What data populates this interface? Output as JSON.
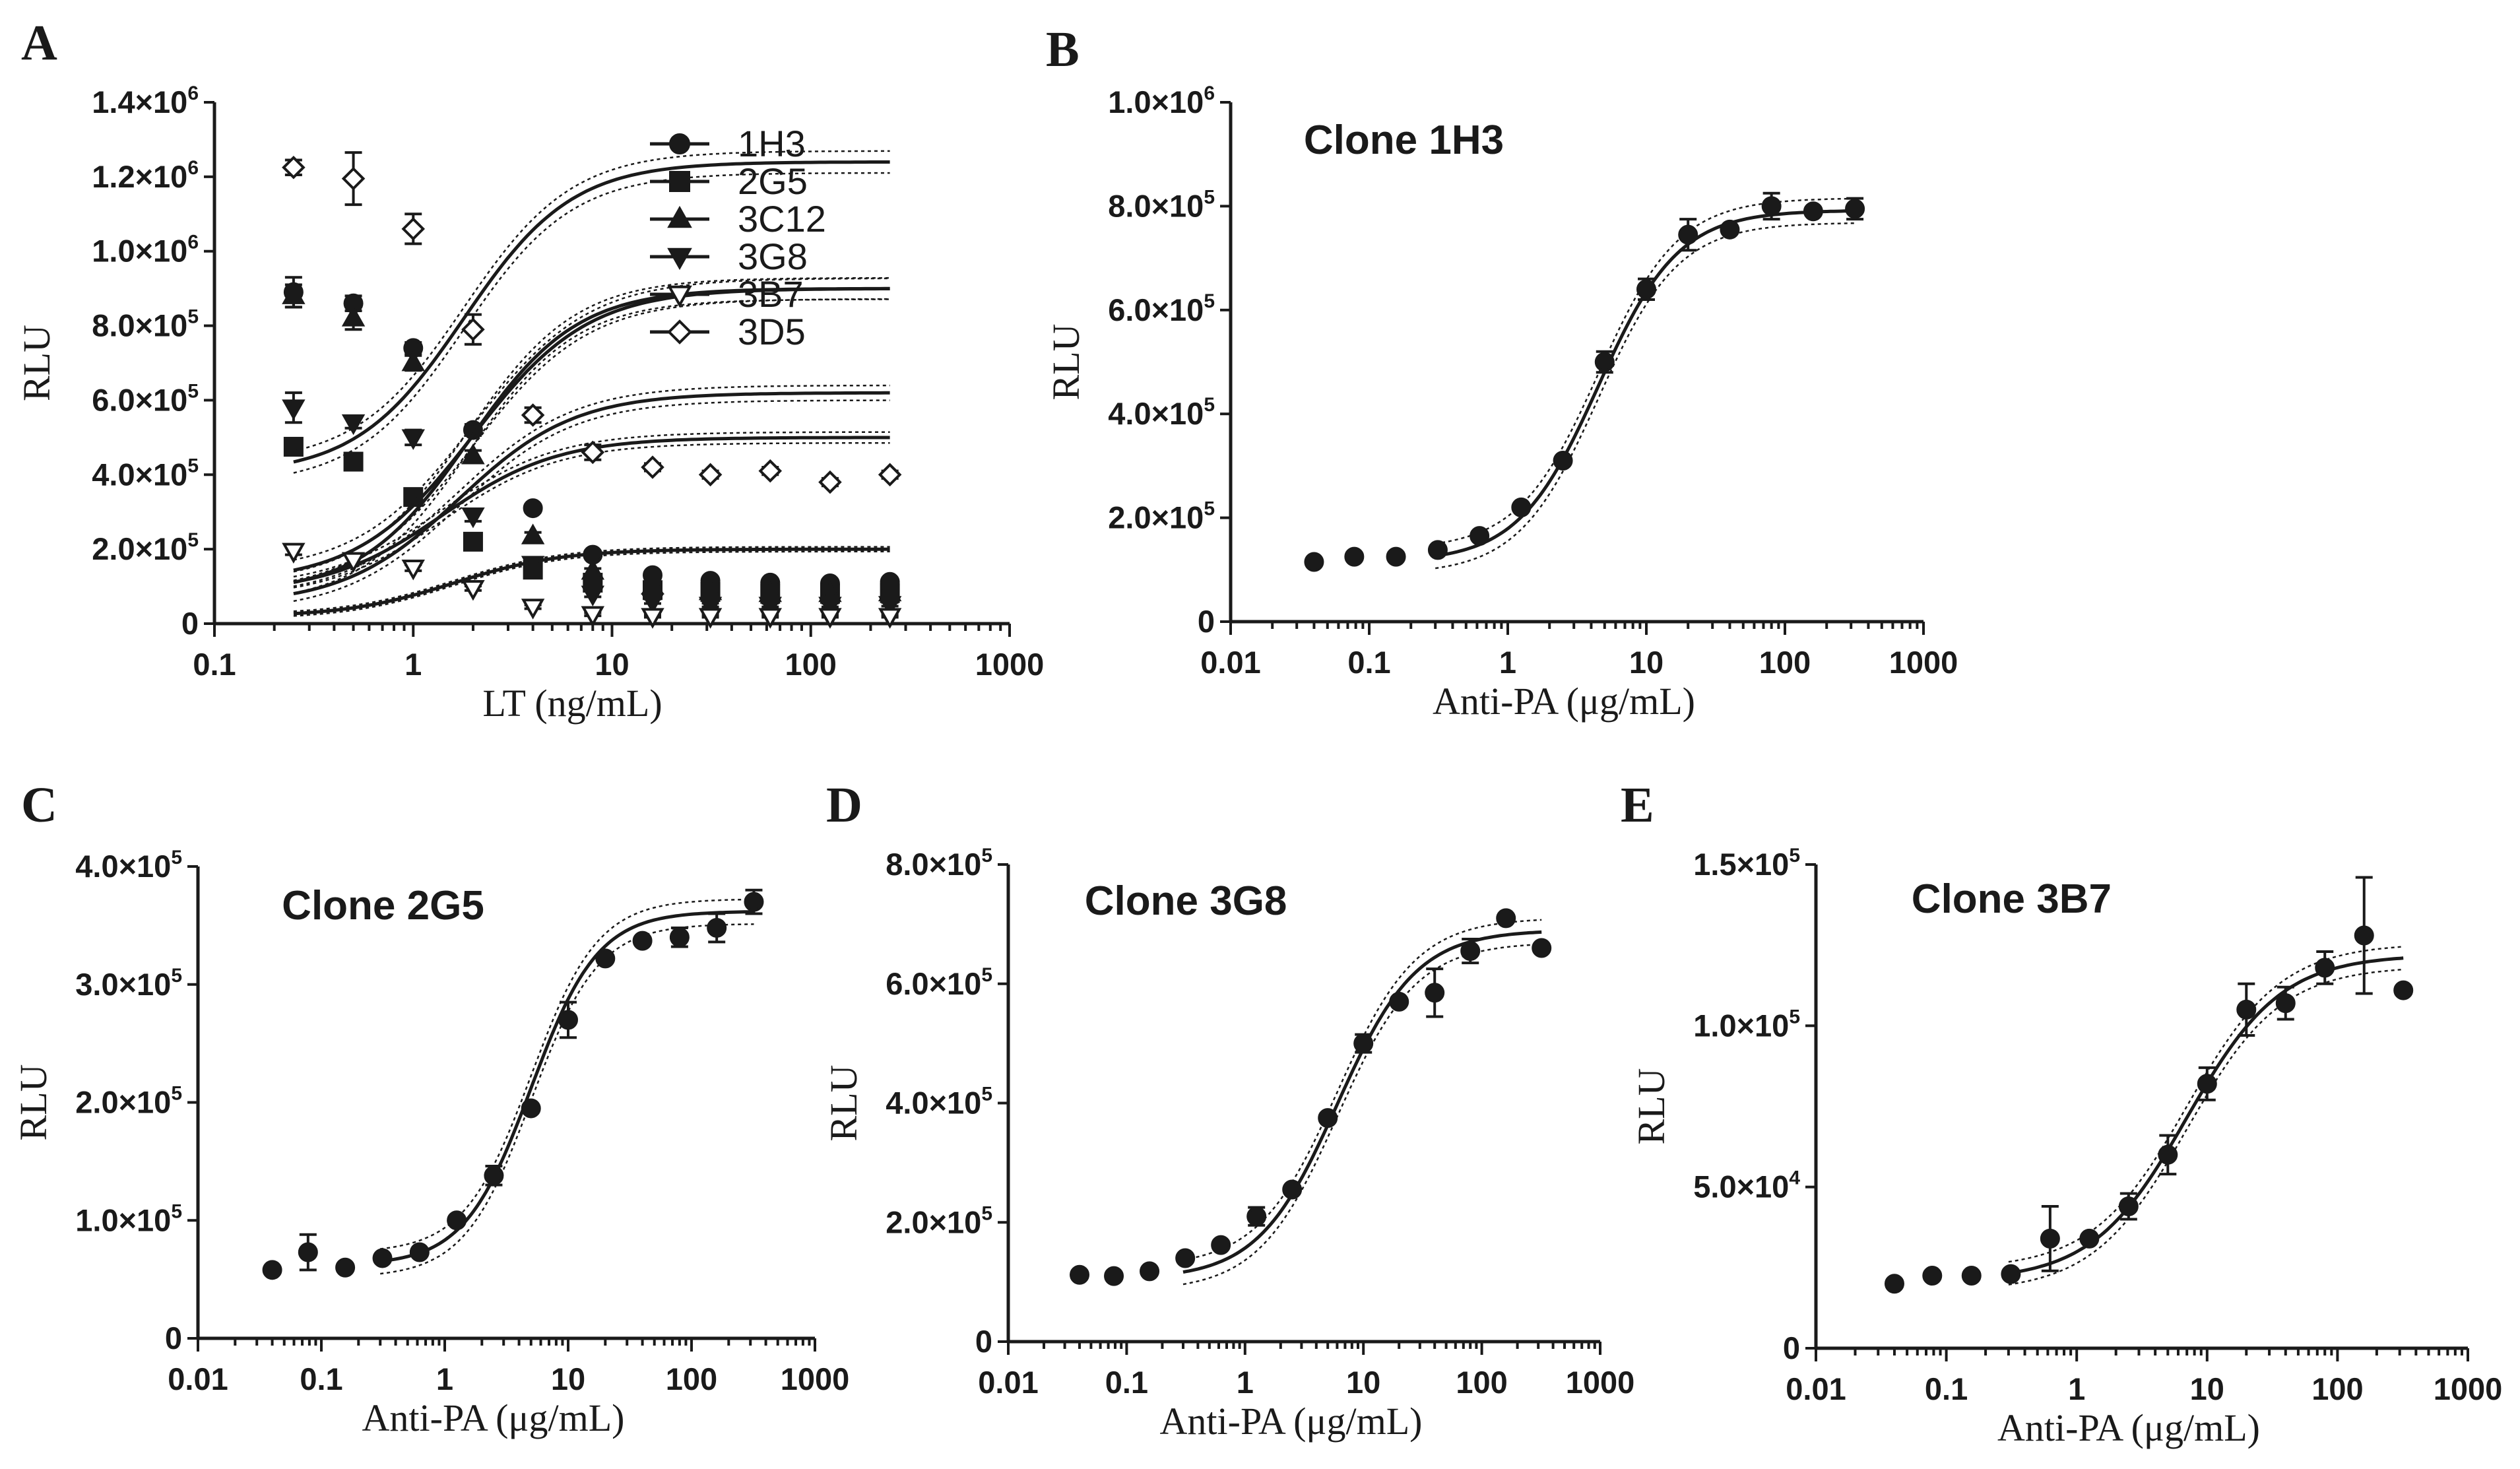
{
  "colors": {
    "ink": "#1a1a1a",
    "background": "#ffffff"
  },
  "chart_data": [
    {
      "panel": "A",
      "type": "scatter",
      "title": "",
      "xlabel": "LT (ng/mL)",
      "ylabel": "RLU",
      "xscale": "log",
      "xlim": [
        0.1,
        1000
      ],
      "ylim": [
        0,
        1400000
      ],
      "xticks": [
        0.1,
        1,
        10,
        100,
        1000
      ],
      "xtick_labels": [
        "0.1",
        "1",
        "10",
        "100",
        "1000"
      ],
      "yticks": [
        0,
        200000,
        400000,
        600000,
        800000,
        1000000,
        1200000,
        1400000
      ],
      "ytick_labels": [
        {
          "m": "0",
          "e": ""
        },
        {
          "m": "2.0×10",
          "e": "5"
        },
        {
          "m": "4.0×10",
          "e": "5"
        },
        {
          "m": "6.0×10",
          "e": "5"
        },
        {
          "m": "8.0×10",
          "e": "5"
        },
        {
          "m": "1.0×10",
          "e": "6"
        },
        {
          "m": "1.2×10",
          "e": "6"
        },
        {
          "m": "1.4×10",
          "e": "6"
        }
      ],
      "legend_position": "top-right",
      "series": [
        {
          "name": "1H3",
          "marker": "circle",
          "x": [
            0.25,
            0.5,
            1,
            2,
            4,
            8,
            16,
            31.25,
            62.5,
            125,
            250
          ],
          "y": [
            890000,
            860000,
            740000,
            520000,
            310000,
            185000,
            130000,
            115000,
            110000,
            108000,
            112000
          ],
          "err": [
            40000,
            20000,
            15000,
            15000,
            10000,
            8000,
            6000,
            5000,
            5000,
            5000,
            5000
          ],
          "fit": {
            "bottom": 110000,
            "top": 900000,
            "ec50": 2.0,
            "hill": 1.5
          }
        },
        {
          "name": "2G5",
          "marker": "square",
          "x": [
            0.25,
            0.5,
            1,
            2,
            4,
            8,
            16,
            31.25,
            62.5,
            125,
            250
          ],
          "y": [
            475000,
            435000,
            340000,
            220000,
            145000,
            110000,
            90000,
            85000,
            80000,
            80000,
            82000
          ],
          "err": [
            10000,
            10000,
            10000,
            10000,
            8000,
            6000,
            5000,
            5000,
            5000,
            5000,
            5000
          ],
          "fit": {
            "bottom": 82000,
            "top": 500000,
            "ec50": 1.4,
            "hill": 1.5
          }
        },
        {
          "name": "3C12",
          "marker": "triangle-up",
          "x": [
            0.25,
            0.5,
            1,
            2,
            4,
            8,
            16,
            31.25,
            62.5,
            125,
            250
          ],
          "y": [
            880000,
            820000,
            700000,
            450000,
            235000,
            140000,
            100000,
            85000,
            80000,
            80000,
            82000
          ],
          "err": [
            30000,
            30000,
            20000,
            15000,
            10000,
            8000,
            6000,
            5000,
            5000,
            5000,
            5000
          ],
          "fit": {
            "bottom": 80000,
            "top": 900000,
            "ec50": 1.9,
            "hill": 1.6
          }
        },
        {
          "name": "3G8",
          "marker": "triangle-down",
          "x": [
            0.25,
            0.5,
            1,
            2,
            4,
            8,
            16,
            31.25,
            62.5,
            125,
            250
          ],
          "y": [
            580000,
            540000,
            500000,
            290000,
            160000,
            80000,
            60000,
            50000,
            50000,
            50000,
            52000
          ],
          "err": [
            40000,
            15000,
            20000,
            15000,
            10000,
            8000,
            6000,
            5000,
            5000,
            5000,
            5000
          ],
          "fit": {
            "bottom": 50000,
            "top": 620000,
            "ec50": 1.7,
            "hill": 1.5
          }
        },
        {
          "name": "3B7",
          "marker": "triangle-down-open",
          "x": [
            0.25,
            0.5,
            1,
            2,
            4,
            8,
            16,
            31.25,
            62.5,
            125,
            250
          ],
          "y": [
            195000,
            170000,
            150000,
            95000,
            45000,
            25000,
            20000,
            20000,
            20000,
            20000,
            20000
          ],
          "err": [
            10000,
            10000,
            8000,
            6000,
            5000,
            4000,
            3000,
            3000,
            3000,
            3000,
            3000
          ],
          "fit": {
            "bottom": 18000,
            "top": 200000,
            "ec50": 1.6,
            "hill": 1.6
          }
        },
        {
          "name": "3D5",
          "marker": "diamond-open",
          "x": [
            0.25,
            0.5,
            1,
            2,
            4,
            8,
            16,
            31.25,
            62.5,
            125,
            250
          ],
          "y": [
            1225000,
            1195000,
            1060000,
            790000,
            560000,
            460000,
            420000,
            400000,
            410000,
            380000,
            400000
          ],
          "err": [
            20000,
            70000,
            40000,
            40000,
            20000,
            20000,
            10000,
            10000,
            10000,
            10000,
            10000
          ],
          "fit": {
            "bottom": 400000,
            "top": 1240000,
            "ec50": 1.8,
            "hill": 1.6
          }
        }
      ]
    },
    {
      "panel": "B",
      "type": "scatter",
      "title": "Clone 1H3",
      "xlabel": "Anti-PA (μg/mL)",
      "ylabel": "RLU",
      "xscale": "log",
      "xlim": [
        0.01,
        1000
      ],
      "ylim": [
        0,
        1000000
      ],
      "xticks": [
        0.01,
        0.1,
        1,
        10,
        100,
        1000
      ],
      "xtick_labels": [
        "0.01",
        "0.1",
        "1",
        "10",
        "100",
        "1000"
      ],
      "yticks": [
        0,
        200000,
        400000,
        600000,
        800000,
        1000000
      ],
      "ytick_labels": [
        {
          "m": "0",
          "e": ""
        },
        {
          "m": "2.0×10",
          "e": "5"
        },
        {
          "m": "4.0×10",
          "e": "5"
        },
        {
          "m": "6.0×10",
          "e": "5"
        },
        {
          "m": "8.0×10",
          "e": "5"
        },
        {
          "m": "1.0×10",
          "e": "6"
        }
      ],
      "series": [
        {
          "name": "Clone 1H3",
          "marker": "circle",
          "x": [
            0.04,
            0.078,
            0.156,
            0.3125,
            0.625,
            1.25,
            2.5,
            5,
            10,
            20,
            40,
            80,
            160,
            320
          ],
          "y": [
            115000,
            125000,
            125000,
            138000,
            165000,
            220000,
            310000,
            500000,
            640000,
            745000,
            755000,
            800000,
            790000,
            795000
          ],
          "err": [
            0,
            0,
            0,
            0,
            0,
            0,
            0,
            20000,
            20000,
            30000,
            0,
            25000,
            0,
            20000
          ],
          "fit": {
            "bottom": 115000,
            "top": 792000,
            "ec50": 4.5,
            "hill": 1.5
          }
        }
      ]
    },
    {
      "panel": "C",
      "type": "scatter",
      "title": "Clone 2G5",
      "xlabel": "Anti-PA (μg/mL)",
      "ylabel": "RLU",
      "xscale": "log",
      "xlim": [
        0.01,
        1000
      ],
      "ylim": [
        0,
        400000
      ],
      "xticks": [
        0.01,
        0.1,
        1,
        10,
        100,
        1000
      ],
      "xtick_labels": [
        "0.01",
        "0.1",
        "1",
        "10",
        "100",
        "1000"
      ],
      "yticks": [
        0,
        100000,
        200000,
        300000,
        400000
      ],
      "ytick_labels": [
        {
          "m": "0",
          "e": ""
        },
        {
          "m": "1.0×10",
          "e": "5"
        },
        {
          "m": "2.0×10",
          "e": "5"
        },
        {
          "m": "3.0×10",
          "e": "5"
        },
        {
          "m": "4.0×10",
          "e": "5"
        }
      ],
      "series": [
        {
          "name": "Clone 2G5",
          "marker": "circle",
          "x": [
            0.04,
            0.078,
            0.156,
            0.3125,
            0.625,
            1.25,
            2.5,
            5,
            10,
            20,
            40,
            80,
            160,
            320
          ],
          "y": [
            58000,
            73000,
            60000,
            68000,
            73000,
            100000,
            138000,
            195000,
            270000,
            322000,
            337000,
            340000,
            348000,
            370000
          ],
          "err": [
            0,
            15000,
            0,
            0,
            0,
            0,
            8000,
            0,
            15000,
            0,
            0,
            8000,
            12000,
            10000
          ],
          "fit": {
            "bottom": 62000,
            "top": 362000,
            "ec50": 5.0,
            "hill": 1.6
          }
        }
      ]
    },
    {
      "panel": "D",
      "type": "scatter",
      "title": "Clone 3G8",
      "xlabel": "Anti-PA (μg/mL)",
      "ylabel": "RLU",
      "xscale": "log",
      "xlim": [
        0.01,
        1000
      ],
      "ylim": [
        0,
        800000
      ],
      "xticks": [
        0.01,
        0.1,
        1,
        10,
        100,
        1000
      ],
      "xtick_labels": [
        "0.01",
        "0.1",
        "1",
        "10",
        "100",
        "1000"
      ],
      "yticks": [
        0,
        200000,
        400000,
        600000,
        800000
      ],
      "ytick_labels": [
        {
          "m": "0",
          "e": ""
        },
        {
          "m": "2.0×10",
          "e": "5"
        },
        {
          "m": "4.0×10",
          "e": "5"
        },
        {
          "m": "6.0×10",
          "e": "5"
        },
        {
          "m": "8.0×10",
          "e": "5"
        }
      ],
      "series": [
        {
          "name": "Clone 3G8",
          "marker": "circle",
          "x": [
            0.04,
            0.078,
            0.156,
            0.3125,
            0.625,
            1.25,
            2.5,
            5,
            10,
            20,
            40,
            80,
            160,
            320
          ],
          "y": [
            112000,
            110000,
            118000,
            140000,
            162000,
            210000,
            255000,
            375000,
            500000,
            570000,
            585000,
            655000,
            710000,
            660000
          ],
          "err": [
            0,
            0,
            0,
            0,
            0,
            15000,
            0,
            0,
            15000,
            0,
            40000,
            20000,
            0,
            0
          ],
          "fit": {
            "bottom": 105000,
            "top": 690000,
            "ec50": 6.0,
            "hill": 1.3
          }
        }
      ]
    },
    {
      "panel": "E",
      "type": "scatter",
      "title": "Clone 3B7",
      "xlabel": "Anti-PA (μg/mL)",
      "ylabel": "RLU",
      "xscale": "log",
      "xlim": [
        0.01,
        1000
      ],
      "ylim": [
        0,
        150000
      ],
      "xticks": [
        0.01,
        0.1,
        1,
        10,
        100,
        1000
      ],
      "xtick_labels": [
        "0.01",
        "0.1",
        "1",
        "10",
        "100",
        "1000"
      ],
      "yticks": [
        0,
        50000,
        100000,
        150000
      ],
      "ytick_labels": [
        {
          "m": "0",
          "e": ""
        },
        {
          "m": "5.0×10",
          "e": "4"
        },
        {
          "m": "1.0×10",
          "e": "5"
        },
        {
          "m": "1.5×10",
          "e": "5"
        }
      ],
      "series": [
        {
          "name": "Clone 3B7",
          "marker": "circle",
          "x": [
            0.04,
            0.078,
            0.156,
            0.3125,
            0.625,
            1.25,
            2.5,
            5,
            10,
            20,
            40,
            80,
            160,
            320
          ],
          "y": [
            20000,
            22500,
            22500,
            23000,
            34000,
            34000,
            44000,
            60000,
            82000,
            105000,
            107000,
            118000,
            128000,
            111000
          ],
          "err": [
            0,
            0,
            0,
            0,
            10000,
            0,
            4000,
            6000,
            5000,
            8000,
            5000,
            5000,
            18000,
            0
          ],
          "fit": {
            "bottom": 21000,
            "top": 122000,
            "ec50": 7.0,
            "hill": 1.2
          }
        }
      ]
    }
  ]
}
